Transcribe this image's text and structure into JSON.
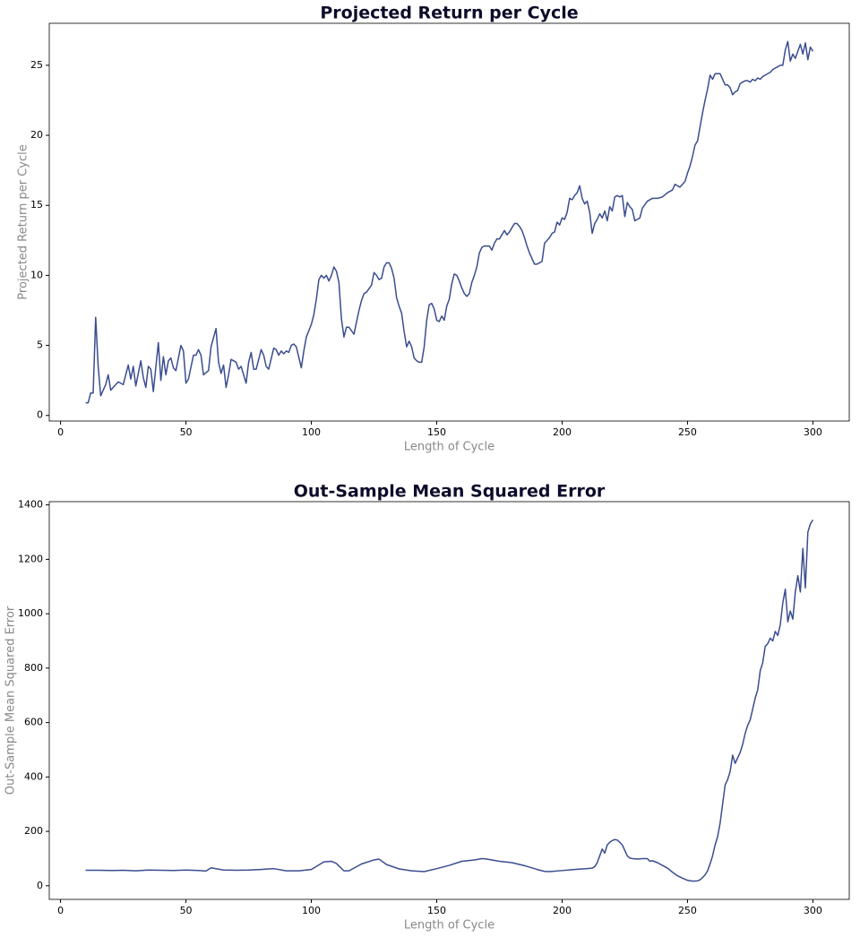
{
  "chart_data": [
    {
      "type": "line",
      "title": "Projected Return per Cycle",
      "x_label": "Length of Cycle",
      "y_label": "Projected Return per Cycle",
      "xlim": [
        -4.5,
        314.5
      ],
      "ylim": [
        -0.4,
        28
      ],
      "xticks": [
        0,
        50,
        100,
        150,
        200,
        250,
        300
      ],
      "yticks": [
        0,
        5,
        10,
        15,
        20,
        25
      ],
      "x": [
        10,
        11,
        12,
        13,
        14,
        15,
        16,
        18,
        19,
        20,
        22,
        23,
        25,
        27,
        28,
        29,
        30,
        32,
        33,
        34,
        35,
        36,
        37,
        39,
        40,
        41,
        42,
        43,
        44,
        45,
        46,
        48,
        49,
        50,
        51,
        53,
        54,
        55,
        56,
        57,
        59,
        60,
        62,
        63,
        64,
        65,
        66,
        67,
        68,
        70,
        71,
        72,
        74,
        75,
        76,
        77,
        78,
        80,
        81,
        82,
        83,
        85,
        86,
        87,
        88,
        89,
        90,
        91,
        92,
        93,
        94,
        96,
        97,
        98,
        100,
        101,
        102,
        103,
        104,
        105,
        106,
        107,
        108,
        109,
        110,
        111,
        112,
        113,
        114,
        115,
        117,
        119,
        120,
        121,
        122,
        124,
        125,
        126,
        127,
        128,
        129,
        130,
        131,
        132,
        133,
        134,
        135,
        136,
        137,
        138,
        139,
        140,
        141,
        142,
        143,
        144,
        145,
        146,
        147,
        148,
        149,
        150,
        151,
        152,
        153,
        154,
        155,
        156,
        157,
        158,
        159,
        160,
        161,
        162,
        163,
        164,
        165,
        166,
        167,
        168,
        169,
        170,
        171,
        172,
        173,
        174,
        175,
        176,
        177,
        178,
        179,
        180,
        181,
        182,
        183,
        184,
        185,
        186,
        187,
        188,
        189,
        190,
        191,
        192,
        193,
        194,
        195,
        196,
        197,
        198,
        199,
        200,
        201,
        202,
        203,
        204,
        205,
        206,
        207,
        208,
        209,
        210,
        211,
        212,
        213,
        214,
        215,
        216,
        217,
        218,
        219,
        220,
        221,
        222,
        223,
        224,
        225,
        226,
        227,
        228,
        229,
        230,
        231,
        232,
        234,
        236,
        238,
        240,
        242,
        244,
        245,
        246,
        247,
        248,
        249,
        250,
        251,
        252,
        253,
        254,
        255,
        256,
        257,
        258,
        259,
        260,
        261,
        262,
        263,
        264,
        265,
        266,
        267,
        268,
        269,
        270,
        271,
        272,
        273,
        274,
        275,
        276,
        277,
        278,
        279,
        280,
        281,
        282,
        283,
        284,
        285,
        286,
        287,
        288,
        289,
        290,
        291,
        292,
        293,
        294,
        295,
        296,
        297,
        298,
        299,
        300
      ],
      "series": [
        {
          "name": "Projected Return",
          "color": "#3a4d8f",
          "values": [
            0.9,
            0.9,
            1.6,
            1.6,
            7.0,
            3.5,
            1.4,
            2.2,
            2.9,
            1.8,
            2.2,
            2.4,
            2.2,
            3.6,
            2.6,
            3.5,
            2.1,
            3.9,
            2.7,
            2.0,
            3.5,
            3.3,
            1.7,
            5.2,
            2.5,
            4.2,
            2.9,
            3.9,
            4.1,
            3.4,
            3.2,
            5.0,
            4.6,
            2.3,
            2.6,
            4.3,
            4.3,
            4.7,
            4.3,
            2.9,
            3.2,
            4.9,
            6.2,
            3.8,
            3.0,
            3.6,
            2.0,
            2.9,
            4.0,
            3.8,
            3.3,
            3.5,
            2.3,
            3.8,
            4.5,
            3.3,
            3.3,
            4.7,
            4.3,
            3.5,
            3.3,
            4.8,
            4.7,
            4.3,
            4.6,
            4.4,
            4.6,
            4.5,
            5.0,
            5.1,
            4.9,
            3.4,
            4.6,
            5.6,
            6.5,
            7.2,
            8.3,
            9.7,
            10.0,
            9.8,
            10.0,
            9.6,
            10.0,
            10.6,
            10.3,
            9.5,
            6.9,
            5.6,
            6.3,
            6.3,
            5.8,
            7.5,
            8.2,
            8.7,
            8.8,
            9.3,
            10.2,
            10.0,
            9.7,
            9.8,
            10.6,
            10.9,
            10.9,
            10.5,
            9.8,
            8.4,
            7.8,
            7.3,
            6.0,
            4.9,
            5.3,
            4.9,
            4.1,
            3.9,
            3.8,
            3.8,
            4.9,
            6.8,
            7.9,
            8.0,
            7.6,
            6.8,
            6.7,
            7.1,
            6.8,
            7.8,
            8.3,
            9.4,
            10.1,
            10.0,
            9.6,
            9.1,
            8.7,
            8.5,
            8.7,
            9.5,
            10.0,
            10.6,
            11.6,
            12.0,
            12.1,
            12.1,
            12.1,
            11.8,
            12.3,
            12.6,
            12.6,
            12.9,
            13.2,
            12.9,
            13.1,
            13.4,
            13.7,
            13.7,
            13.5,
            13.2,
            12.7,
            12.1,
            11.6,
            11.2,
            10.8,
            10.8,
            10.9,
            11.0,
            12.3,
            12.5,
            12.7,
            13.0,
            13.1,
            13.8,
            13.6,
            14.1,
            14.0,
            14.5,
            15.5,
            15.4,
            15.7,
            15.9,
            16.4,
            15.5,
            15.1,
            15.3,
            14.5,
            13.0,
            13.7,
            14.0,
            14.4,
            14.1,
            14.6,
            13.9,
            14.9,
            14.6,
            15.6,
            15.7,
            15.6,
            15.7,
            14.2,
            15.2,
            14.9,
            14.7,
            13.9,
            14.0,
            14.1,
            14.8,
            15.3,
            15.5,
            15.5,
            15.6,
            15.9,
            16.1,
            16.5,
            16.4,
            16.3,
            16.5,
            16.7,
            17.3,
            17.8,
            18.5,
            19.3,
            19.6,
            20.6,
            21.6,
            22.5,
            23.3,
            24.3,
            24.0,
            24.4,
            24.4,
            24.4,
            24.0,
            23.6,
            23.6,
            23.4,
            22.9,
            23.1,
            23.2,
            23.7,
            23.8,
            23.9,
            23.9,
            23.8,
            24.0,
            23.9,
            24.1,
            24.0,
            24.2,
            24.3,
            24.4,
            24.5,
            24.7,
            24.8,
            24.9,
            25.0,
            25.0,
            26.1,
            26.7,
            25.3,
            25.8,
            25.5,
            26.0,
            26.5,
            25.8,
            26.6,
            25.4,
            26.3,
            26.0
          ]
        }
      ]
    },
    {
      "type": "line",
      "title": "Out-Sample Mean Squared Error",
      "x_label": "Length of Cycle",
      "y_label": "Out-Sample Mean Squared Error",
      "xlim": [
        -4.5,
        314.5
      ],
      "ylim": [
        -50,
        1412
      ],
      "xticks": [
        0,
        50,
        100,
        150,
        200,
        250,
        300
      ],
      "yticks": [
        0,
        200,
        400,
        600,
        800,
        1000,
        1200,
        1400
      ],
      "x": [
        10,
        15,
        20,
        25,
        30,
        35,
        40,
        45,
        50,
        55,
        58,
        60,
        65,
        70,
        75,
        80,
        85,
        90,
        95,
        100,
        105,
        108,
        110,
        113,
        115,
        120,
        125,
        127,
        130,
        135,
        140,
        145,
        150,
        155,
        160,
        165,
        168,
        170,
        175,
        180,
        185,
        190,
        193,
        195,
        200,
        205,
        210,
        212,
        213,
        214,
        215,
        216,
        217,
        218,
        219,
        220,
        221,
        222,
        223,
        224,
        225,
        226,
        227,
        228,
        230,
        232,
        234,
        235,
        236,
        238,
        240,
        242,
        244,
        246,
        248,
        250,
        252,
        254,
        255,
        256,
        257,
        258,
        259,
        260,
        261,
        262,
        263,
        264,
        265,
        266,
        267,
        268,
        269,
        270,
        271,
        272,
        273,
        274,
        275,
        276,
        277,
        278,
        279,
        280,
        281,
        282,
        283,
        284,
        285,
        286,
        287,
        288,
        289,
        290,
        291,
        292,
        293,
        294,
        295,
        296,
        297,
        298,
        299,
        300
      ],
      "series": [
        {
          "name": "Out-Sample MSE",
          "color": "#3a4d8f",
          "values": [
            57,
            57,
            56,
            57,
            55,
            58,
            57,
            56,
            58,
            56,
            54,
            66,
            58,
            57,
            58,
            60,
            63,
            55,
            55,
            60,
            88,
            90,
            82,
            55,
            55,
            80,
            95,
            98,
            78,
            62,
            55,
            52,
            63,
            75,
            90,
            95,
            100,
            98,
            90,
            85,
            74,
            60,
            53,
            52,
            56,
            60,
            63,
            65,
            70,
            85,
            110,
            135,
            120,
            150,
            160,
            166,
            170,
            168,
            160,
            150,
            130,
            110,
            102,
            100,
            98,
            100,
            100,
            90,
            92,
            85,
            75,
            65,
            50,
            37,
            28,
            20,
            17,
            18,
            22,
            30,
            40,
            55,
            80,
            110,
            150,
            180,
            230,
            300,
            370,
            390,
            420,
            480,
            450,
            470,
            490,
            520,
            560,
            590,
            610,
            650,
            690,
            720,
            790,
            820,
            880,
            890,
            910,
            900,
            935,
            920,
            960,
            1040,
            1090,
            970,
            1010,
            980,
            1080,
            1140,
            1080,
            1240,
            1095,
            1300,
            1330,
            1345
          ]
        }
      ]
    }
  ]
}
